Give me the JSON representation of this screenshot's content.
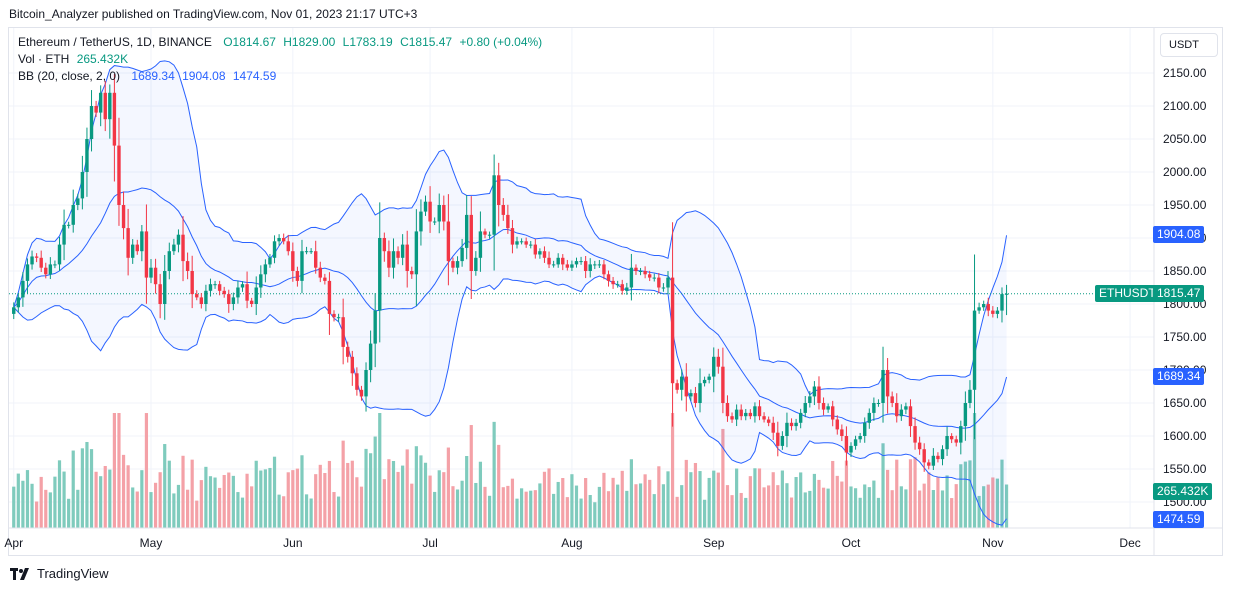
{
  "header": {
    "published_by": "Bitcoin_Analyzer published on TradingView.com, Nov 01, 2023 21:17 UTC+3"
  },
  "unit_button": "USDT",
  "legend": {
    "symbol": "Ethereum / TetherUS, 1D, BINANCE",
    "open": "O1814.67",
    "high": "H1829.00",
    "low": "L1783.19",
    "close": "C1815.47",
    "change": "+0.80 (+0.04%)",
    "vol_label": "Vol · ETH",
    "vol_value": "265.432K",
    "bb_label": "BB (20, close, 2, 0)",
    "bb_basis": "1689.34",
    "bb_upper": "1904.08",
    "bb_lower": "1474.59"
  },
  "price_tags": {
    "upper": "1904.08",
    "symbol": "ETHUSDT",
    "last": "1815.47",
    "basis": "1689.34",
    "volume": "265.432K",
    "lower": "1474.59"
  },
  "footer": {
    "brand": "TradingView"
  },
  "colors": {
    "up": "#089981",
    "down": "#f23645",
    "band": "#2962ff",
    "vol_up": "#7fcbbd",
    "vol_down": "#f4a1a7"
  },
  "chart_data": {
    "type": "candlestick",
    "title": "Ethereum / TetherUS, 1D, BINANCE",
    "y_ticks": [
      1500,
      1550,
      1600,
      1650,
      1700,
      1750,
      1800,
      1850,
      1900,
      1950,
      2000,
      2050,
      2100,
      2150
    ],
    "y_tick_labels": [
      "1500.00",
      "1550.00",
      "1600.00",
      "1650.00",
      "1700.00",
      "1750.00",
      "1800.00",
      "1850.00",
      "1900.00",
      "1950.00",
      "2000.00",
      "2050.00",
      "2100.00",
      "2150.00"
    ],
    "x_tick_labels": [
      "Apr",
      "May",
      "Jun",
      "Jul",
      "Aug",
      "Sep",
      "Oct",
      "Nov",
      "Dec"
    ],
    "x_tick_day_index": [
      0,
      30,
      61,
      91,
      122,
      153,
      183,
      214,
      244
    ],
    "start": "2023-04-01",
    "closes": [
      1795,
      1810,
      1835,
      1860,
      1872,
      1870,
      1855,
      1845,
      1860,
      1860,
      1890,
      1920,
      1920,
      1950,
      1960,
      2000,
      2050,
      2100,
      2090,
      2120,
      2080,
      2120,
      2040,
      1950,
      1915,
      1870,
      1890,
      1880,
      1910,
      1840,
      1855,
      1830,
      1800,
      1850,
      1880,
      1890,
      1905,
      1865,
      1850,
      1815,
      1810,
      1800,
      1820,
      1830,
      1830,
      1820,
      1815,
      1800,
      1810,
      1825,
      1830,
      1805,
      1800,
      1825,
      1845,
      1860,
      1870,
      1895,
      1900,
      1895,
      1880,
      1850,
      1835,
      1880,
      1880,
      1880,
      1855,
      1840,
      1835,
      1785,
      1780,
      1780,
      1735,
      1720,
      1695,
      1670,
      1660,
      1700,
      1740,
      1790,
      1900,
      1880,
      1855,
      1880,
      1870,
      1890,
      1850,
      1845,
      1910,
      1940,
      1955,
      1925,
      1925,
      1950,
      1925,
      1865,
      1855,
      1865,
      1885,
      1935,
      1850,
      1870,
      1910,
      1905,
      1905,
      1995,
      1950,
      1935,
      1915,
      1890,
      1895,
      1895,
      1890,
      1890,
      1875,
      1880,
      1870,
      1860,
      1860,
      1870,
      1860,
      1855,
      1860,
      1865,
      1865,
      1850,
      1860,
      1860,
      1860,
      1845,
      1835,
      1830,
      1830,
      1820,
      1825,
      1855,
      1850,
      1850,
      1845,
      1840,
      1840,
      1825,
      1825,
      1840,
      1680,
      1670,
      1690,
      1660,
      1665,
      1650,
      1680,
      1685,
      1690,
      1720,
      1705,
      1650,
      1630,
      1625,
      1640,
      1630,
      1635,
      1630,
      1645,
      1630,
      1625,
      1620,
      1605,
      1585,
      1600,
      1620,
      1615,
      1620,
      1635,
      1650,
      1660,
      1675,
      1650,
      1640,
      1645,
      1625,
      1610,
      1600,
      1575,
      1585,
      1595,
      1600,
      1620,
      1635,
      1650,
      1650,
      1700,
      1660,
      1650,
      1630,
      1640,
      1645,
      1615,
      1590,
      1580,
      1560,
      1555,
      1570,
      1565,
      1580,
      1600,
      1595,
      1590,
      1615,
      1650,
      1670,
      1790,
      1795,
      1800,
      1790,
      1785,
      1790,
      1815,
      1815
    ],
    "bb_upper_last": 1904.08,
    "bb_basis_last": 1689.34,
    "bb_lower_last": 1474.59,
    "last_close": 1815.47,
    "last_volume": "265.432K"
  }
}
